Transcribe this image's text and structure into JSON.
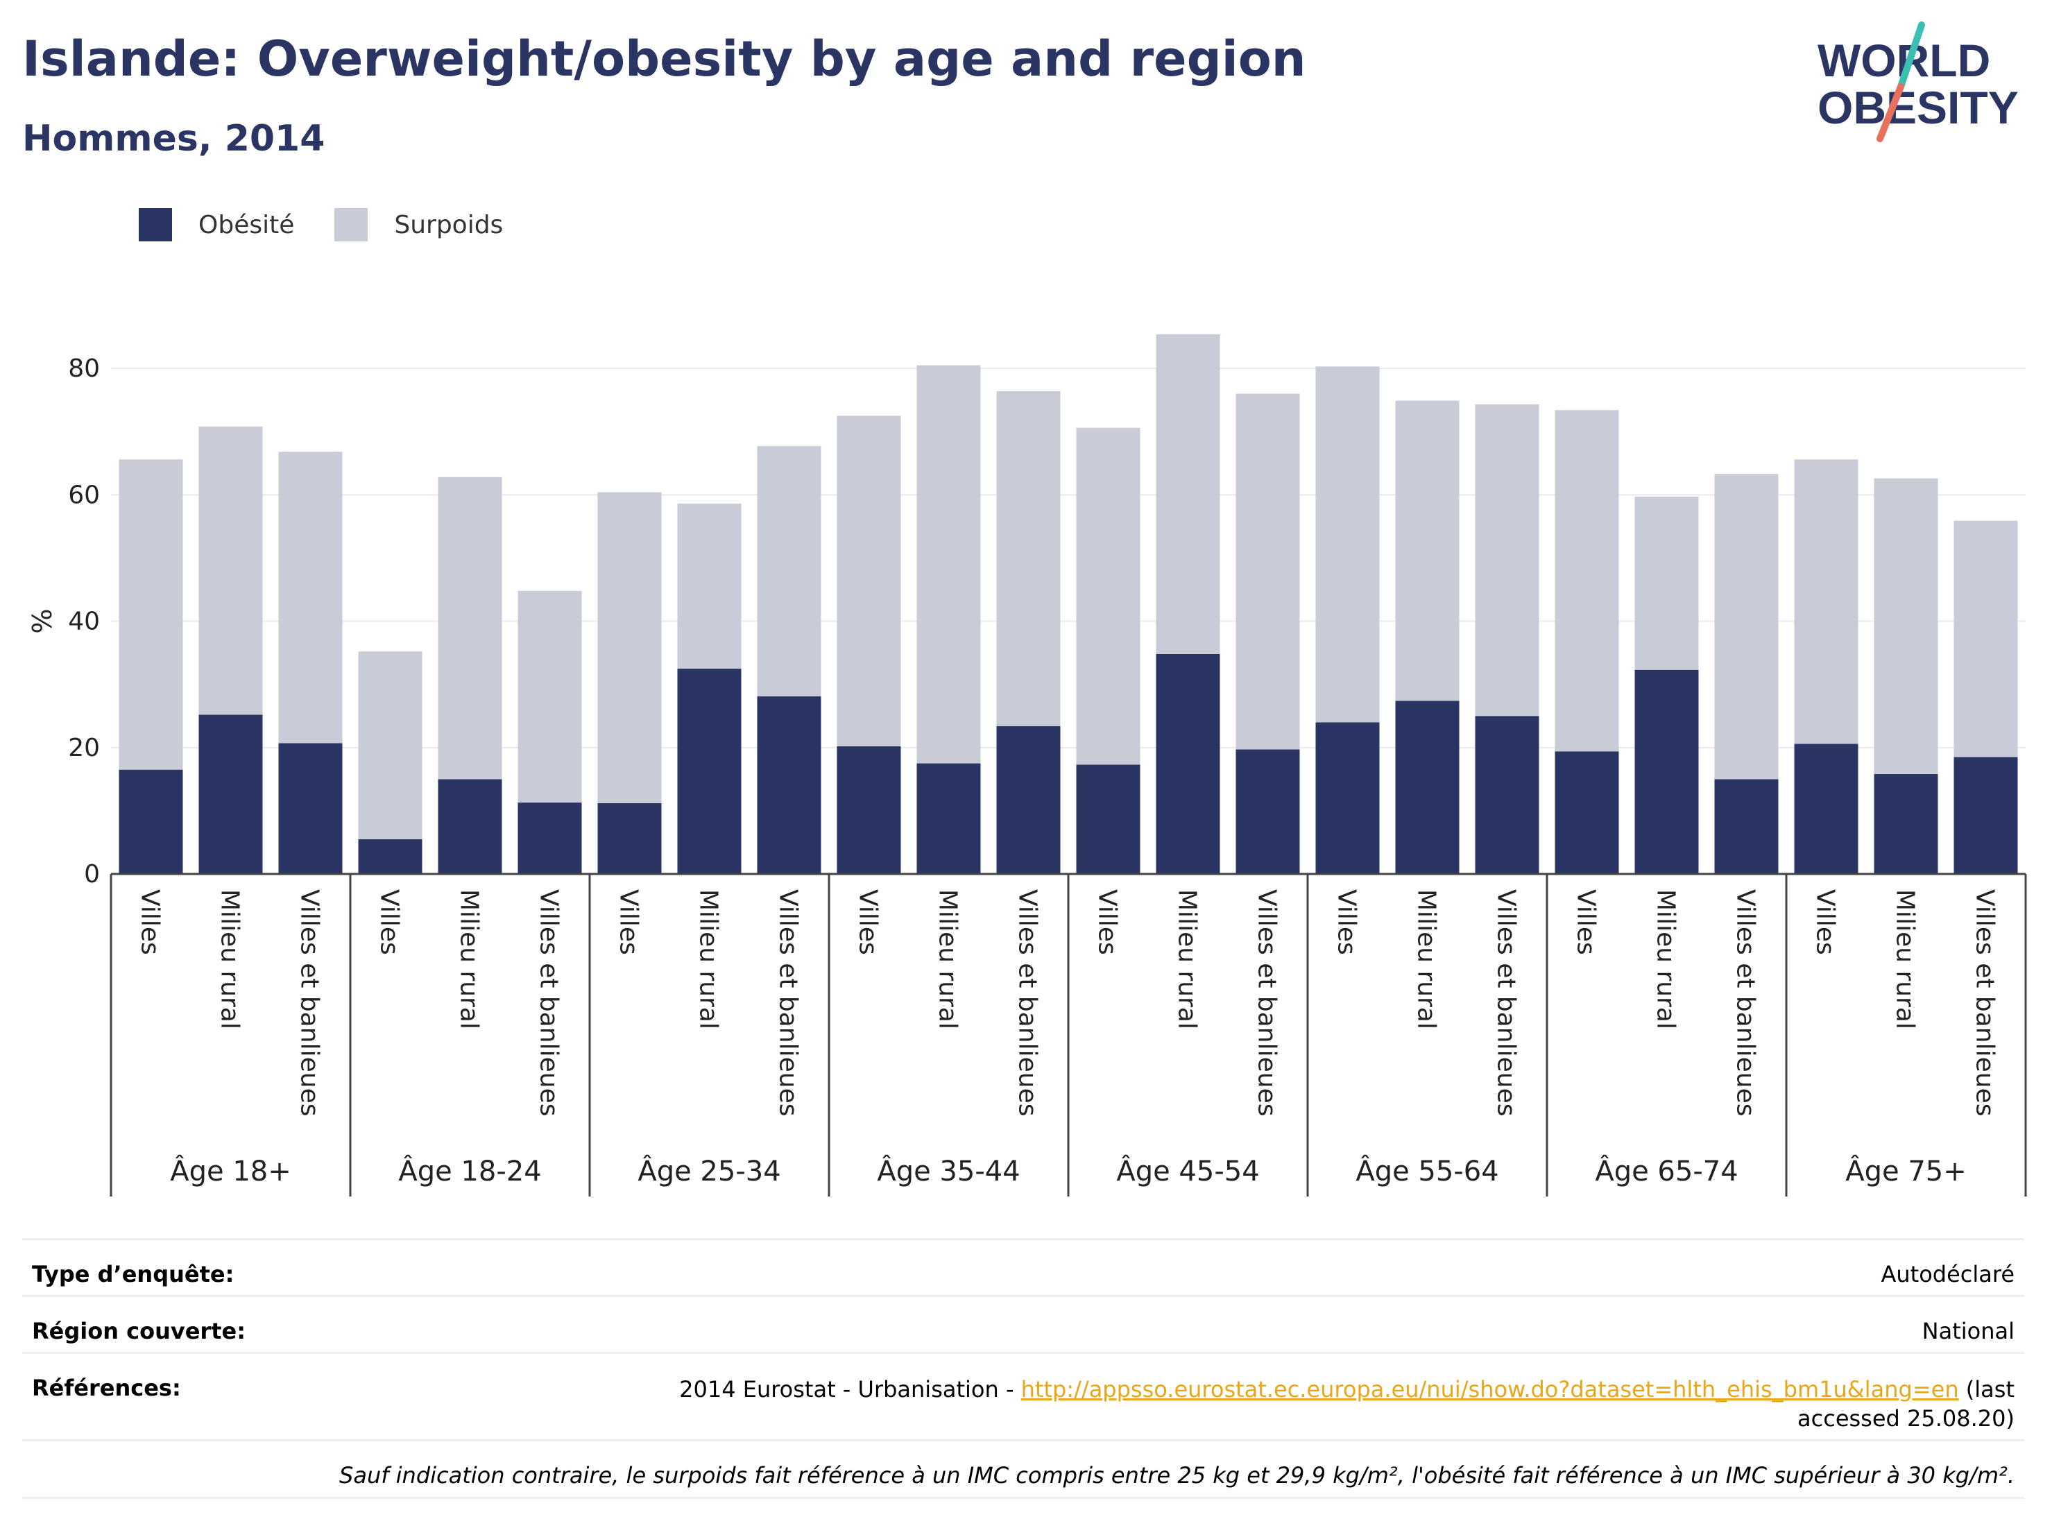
{
  "title": "Islande: Overweight/obesity by age and region",
  "subtitle": "Hommes, 2014",
  "logo": {
    "line1": "WORLD",
    "line2": "OBESITY"
  },
  "colors": {
    "obesity": "#2a3563",
    "overweight": "#c9cbd6",
    "title": "#2a3563",
    "link": "#e8a619",
    "logo_teal": "#3bbfb0",
    "logo_coral": "#e8705e"
  },
  "chart_data": {
    "type": "bar",
    "stacked": true,
    "ylabel": "%",
    "ylim": [
      0,
      90
    ],
    "yticks": [
      0,
      20,
      40,
      60,
      80
    ],
    "grid": true,
    "legend_position": "top-left",
    "groups": [
      "Âge 18+",
      "Âge 18-24",
      "Âge 25-34",
      "Âge 35-44",
      "Âge 45-54",
      "Âge 55-64",
      "Âge 65-74",
      "Âge 75+"
    ],
    "subcategories": [
      "Villes",
      "Milieu rural",
      "Villes et banlieues"
    ],
    "series": [
      {
        "name": "Obésité",
        "values": [
          16.5,
          25.2,
          20.7,
          5.5,
          15.0,
          11.3,
          11.2,
          32.5,
          28.1,
          20.2,
          17.5,
          23.4,
          17.3,
          34.8,
          19.7,
          24.0,
          27.4,
          25.0,
          19.4,
          32.3,
          15.0,
          20.6,
          15.8,
          18.5
        ]
      },
      {
        "name": "Surpoids",
        "values": [
          49.1,
          45.6,
          46.1,
          29.7,
          47.8,
          33.5,
          49.2,
          26.1,
          39.6,
          52.3,
          63.0,
          53.0,
          53.3,
          50.6,
          56.3,
          56.3,
          47.5,
          49.3,
          54.0,
          27.4,
          48.3,
          45.0,
          46.8,
          37.4
        ]
      }
    ]
  },
  "info": {
    "survey_type_label": "Type d’enquête:",
    "survey_type_value": "Autodéclaré",
    "region_label": "Région couverte:",
    "region_value": "National",
    "references_label": "Références:",
    "references_prefix": "2014 Eurostat - Urbanisation - ",
    "references_link": "http://appsso.eurostat.ec.europa.eu/nui/show.do?dataset=hlth_ehis_bm1u&lang=en",
    "references_suffix": " (last accessed 25.08.20)",
    "note": "Sauf indication contraire, le surpoids fait référence à un IMC compris entre 25 kg et 29,9 kg/m², l'obésité fait référence à un IMC supérieur à 30 kg/m²."
  }
}
